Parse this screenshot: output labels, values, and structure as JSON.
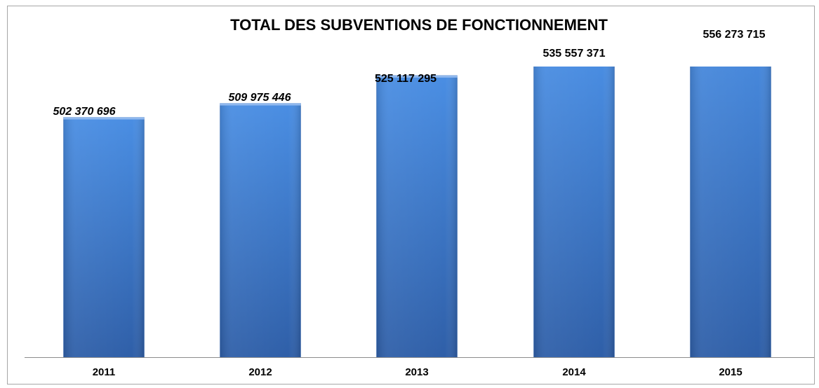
{
  "chart_data": {
    "type": "bar",
    "title": "TOTAL DES SUBVENTIONS DE FONCTIONNEMENT",
    "categories": [
      "2011",
      "2012",
      "2013",
      "2014",
      "2015"
    ],
    "values": [
      502370696,
      509975446,
      525117295,
      535557371,
      556273715
    ],
    "value_labels": [
      "502 370 696",
      "509 975 446",
      "525 117 295",
      "535 557 371",
      "556 273 715"
    ],
    "color": "#4281d6",
    "ylim": [
      372000000,
      530000000
    ]
  }
}
